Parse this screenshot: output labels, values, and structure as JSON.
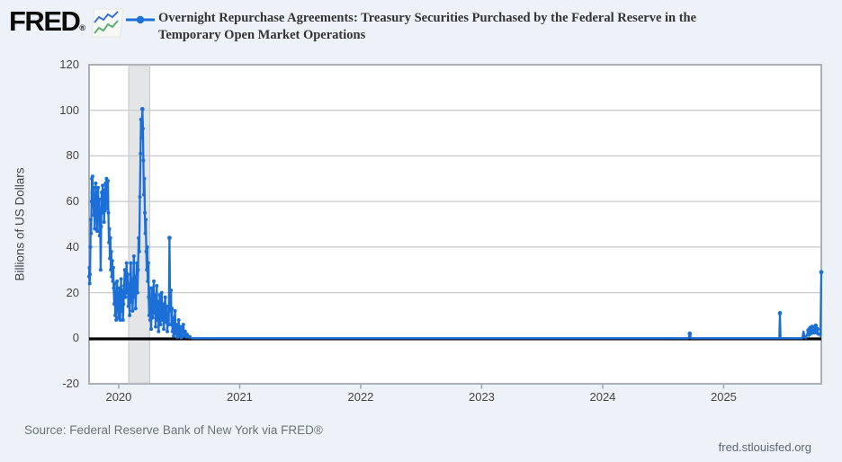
{
  "header": {
    "logo": "FRED",
    "logo_registered": "®",
    "title_line1": "Overnight Repurchase Agreements: Treasury Securities Purchased by the Federal Reserve in the",
    "title_line2": "Temporary Open Market Operations"
  },
  "footer": {
    "source": "Source: Federal Reserve Bank of New York via FRED®",
    "site": "fred.stlouisfed.org"
  },
  "colors": {
    "line": "#1d6fd8",
    "zero_line": "#000000",
    "recession_band": "#e4e5e7",
    "recession_edge": "#c6c7c9",
    "background": "#edf1f8",
    "plot_background": "#ffffff",
    "grid": "#cbcdd0",
    "border": "#aab0b6",
    "tick": "#9aa0a8",
    "axis_text": "#444444",
    "title_text": "#333333",
    "footer_text": "#6a737c"
  },
  "chart_data": {
    "type": "line",
    "title": "Overnight Repurchase Agreements: Treasury Securities Purchased by the Federal Reserve in the Temporary Open Market Operations",
    "xlabel": "",
    "ylabel": "Billions of US Dollars",
    "ylim": [
      -20,
      120
    ],
    "xlim": [
      2019.755,
      2025.807
    ],
    "y_ticks": [
      120,
      100,
      80,
      60,
      40,
      20,
      0,
      -20
    ],
    "x_ticks": [
      2020,
      2021,
      2022,
      2023,
      2024,
      2025
    ],
    "grid": "horizontal",
    "legend_position": "top",
    "zero_line": true,
    "recession_band": {
      "start": 2020.082,
      "end": 2020.256
    },
    "series": [
      {
        "name": "Overnight Repurchase Agreements: Treasury Securities Purchased by the Federal Reserve in the Temporary Open Market Operations",
        "color": "#1d6fd8",
        "units": "Billions of US Dollars",
        "points": [
          [
            2019.755,
            27
          ],
          [
            2019.758,
            31
          ],
          [
            2019.76,
            24
          ],
          [
            2019.763,
            28
          ],
          [
            2019.766,
            40
          ],
          [
            2019.769,
            52
          ],
          [
            2019.772,
            46
          ],
          [
            2019.775,
            60
          ],
          [
            2019.778,
            70
          ],
          [
            2019.781,
            64
          ],
          [
            2019.784,
            71
          ],
          [
            2019.787,
            58
          ],
          [
            2019.79,
            66
          ],
          [
            2019.794,
            54
          ],
          [
            2019.798,
            62
          ],
          [
            2019.802,
            48
          ],
          [
            2019.806,
            58
          ],
          [
            2019.81,
            68
          ],
          [
            2019.814,
            56
          ],
          [
            2019.818,
            64
          ],
          [
            2019.822,
            47
          ],
          [
            2019.826,
            59
          ],
          [
            2019.83,
            66
          ],
          [
            2019.834,
            53
          ],
          [
            2019.838,
            61
          ],
          [
            2019.842,
            45
          ],
          [
            2019.846,
            57
          ],
          [
            2019.851,
            30
          ],
          [
            2019.855,
            49
          ],
          [
            2019.859,
            64
          ],
          [
            2019.863,
            55
          ],
          [
            2019.867,
            67
          ],
          [
            2019.871,
            58
          ],
          [
            2019.875,
            65
          ],
          [
            2019.879,
            51
          ],
          [
            2019.883,
            62
          ],
          [
            2019.887,
            56
          ],
          [
            2019.891,
            68
          ],
          [
            2019.895,
            60
          ],
          [
            2019.899,
            70
          ],
          [
            2019.903,
            63
          ],
          [
            2019.907,
            57
          ],
          [
            2019.911,
            69
          ],
          [
            2019.915,
            55
          ],
          [
            2019.919,
            42
          ],
          [
            2019.923,
            48
          ],
          [
            2019.927,
            35
          ],
          [
            2019.931,
            44
          ],
          [
            2019.935,
            30
          ],
          [
            2019.939,
            38
          ],
          [
            2019.943,
            27
          ],
          [
            2019.947,
            34
          ],
          [
            2019.951,
            25
          ],
          [
            2019.955,
            31
          ],
          [
            2019.959,
            22
          ],
          [
            2019.963,
            15
          ],
          [
            2019.967,
            24
          ],
          [
            2019.971,
            10
          ],
          [
            2019.975,
            19
          ],
          [
            2019.979,
            8
          ],
          [
            2019.983,
            16
          ],
          [
            2019.987,
            25
          ],
          [
            2019.991,
            12
          ],
          [
            2019.995,
            20
          ],
          [
            2020.0,
            9
          ],
          [
            2020.004,
            15
          ],
          [
            2020.008,
            22
          ],
          [
            2020.012,
            8
          ],
          [
            2020.016,
            17
          ],
          [
            2020.02,
            26
          ],
          [
            2020.025,
            12
          ],
          [
            2020.03,
            21
          ],
          [
            2020.035,
            8
          ],
          [
            2020.04,
            15
          ],
          [
            2020.045,
            23
          ],
          [
            2020.05,
            30
          ],
          [
            2020.055,
            18
          ],
          [
            2020.06,
            26
          ],
          [
            2020.065,
            33
          ],
          [
            2020.07,
            20
          ],
          [
            2020.075,
            28
          ],
          [
            2020.08,
            14
          ],
          [
            2020.085,
            24
          ],
          [
            2020.09,
            10
          ],
          [
            2020.095,
            20
          ],
          [
            2020.1,
            33
          ],
          [
            2020.105,
            16
          ],
          [
            2020.11,
            26
          ],
          [
            2020.115,
            12
          ],
          [
            2020.12,
            22
          ],
          [
            2020.125,
            36
          ],
          [
            2020.13,
            18
          ],
          [
            2020.135,
            27
          ],
          [
            2020.14,
            13
          ],
          [
            2020.145,
            24
          ],
          [
            2020.15,
            33
          ],
          [
            2020.155,
            20
          ],
          [
            2020.16,
            30
          ],
          [
            2020.165,
            44
          ],
          [
            2020.17,
            38
          ],
          [
            2020.175,
            62
          ],
          [
            2020.18,
            81
          ],
          [
            2020.184,
            96
          ],
          [
            2020.188,
            88
          ],
          [
            2020.192,
            95
          ],
          [
            2020.196,
            100.5
          ],
          [
            2020.2,
            92
          ],
          [
            2020.204,
            78
          ],
          [
            2020.208,
            63
          ],
          [
            2020.212,
            70
          ],
          [
            2020.216,
            55
          ],
          [
            2020.22,
            46
          ],
          [
            2020.224,
            52
          ],
          [
            2020.228,
            38
          ],
          [
            2020.232,
            30
          ],
          [
            2020.236,
            40
          ],
          [
            2020.24,
            25
          ],
          [
            2020.244,
            33
          ],
          [
            2020.248,
            18
          ],
          [
            2020.252,
            10
          ],
          [
            2020.256,
            22
          ],
          [
            2020.26,
            8
          ],
          [
            2020.264,
            16
          ],
          [
            2020.268,
            4
          ],
          [
            2020.272,
            12
          ],
          [
            2020.276,
            22
          ],
          [
            2020.28,
            9
          ],
          [
            2020.285,
            17
          ],
          [
            2020.29,
            25
          ],
          [
            2020.295,
            11
          ],
          [
            2020.3,
            19
          ],
          [
            2020.305,
            5
          ],
          [
            2020.31,
            14
          ],
          [
            2020.315,
            23
          ],
          [
            2020.32,
            8
          ],
          [
            2020.325,
            16
          ],
          [
            2020.33,
            3
          ],
          [
            2020.335,
            11
          ],
          [
            2020.34,
            19
          ],
          [
            2020.345,
            6
          ],
          [
            2020.35,
            13
          ],
          [
            2020.355,
            20
          ],
          [
            2020.36,
            8
          ],
          [
            2020.366,
            15
          ],
          [
            2020.372,
            4
          ],
          [
            2020.378,
            12
          ],
          [
            2020.384,
            18
          ],
          [
            2020.39,
            7
          ],
          [
            2020.396,
            14
          ],
          [
            2020.402,
            3
          ],
          [
            2020.408,
            10
          ],
          [
            2020.414,
            6
          ],
          [
            2020.42,
            44
          ],
          [
            2020.424,
            20
          ],
          [
            2020.428,
            12
          ],
          [
            2020.432,
            21
          ],
          [
            2020.436,
            6
          ],
          [
            2020.44,
            13
          ],
          [
            2020.444,
            3
          ],
          [
            2020.448,
            9
          ],
          [
            2020.454,
            1
          ],
          [
            2020.46,
            7
          ],
          [
            2020.466,
            12
          ],
          [
            2020.472,
            2
          ],
          [
            2020.478,
            6
          ],
          [
            2020.484,
            0.5
          ],
          [
            2020.49,
            4
          ],
          [
            2020.496,
            8
          ],
          [
            2020.502,
            1
          ],
          [
            2020.51,
            5
          ],
          [
            2020.518,
            0.3
          ],
          [
            2020.526,
            3
          ],
          [
            2020.534,
            6
          ],
          [
            2020.542,
            1
          ],
          [
            2020.55,
            3
          ],
          [
            2020.56,
            0.2
          ],
          [
            2020.57,
            2
          ],
          [
            2020.58,
            0.1
          ],
          [
            2020.59,
            1
          ],
          [
            2020.6,
            0.05
          ],
          [
            2020.617,
            0
          ],
          [
            2020.8,
            0
          ],
          [
            2021.0,
            0
          ],
          [
            2021.25,
            0
          ],
          [
            2021.5,
            0
          ],
          [
            2021.75,
            0
          ],
          [
            2022.0,
            0
          ],
          [
            2022.25,
            0
          ],
          [
            2022.5,
            0
          ],
          [
            2022.75,
            0
          ],
          [
            2023.0,
            0
          ],
          [
            2023.25,
            0
          ],
          [
            2023.5,
            0
          ],
          [
            2023.75,
            0
          ],
          [
            2024.0,
            0
          ],
          [
            2024.25,
            0
          ],
          [
            2024.5,
            0
          ],
          [
            2024.71,
            0
          ],
          [
            2024.72,
            2
          ],
          [
            2024.73,
            0
          ],
          [
            2025.0,
            0
          ],
          [
            2025.2,
            0
          ],
          [
            2025.4,
            0
          ],
          [
            2025.46,
            0
          ],
          [
            2025.465,
            11
          ],
          [
            2025.47,
            0
          ],
          [
            2025.55,
            0
          ],
          [
            2025.65,
            0
          ],
          [
            2025.66,
            3
          ],
          [
            2025.67,
            0.5
          ],
          [
            2025.68,
            0
          ],
          [
            2025.7,
            3.5
          ],
          [
            2025.705,
            1
          ],
          [
            2025.715,
            4.5
          ],
          [
            2025.72,
            1.5
          ],
          [
            2025.73,
            5
          ],
          [
            2025.735,
            2
          ],
          [
            2025.745,
            4.5
          ],
          [
            2025.75,
            2
          ],
          [
            2025.76,
            5.5
          ],
          [
            2025.765,
            2
          ],
          [
            2025.775,
            4
          ],
          [
            2025.78,
            1.5
          ],
          [
            2025.79,
            2
          ],
          [
            2025.8,
            1
          ],
          [
            2025.807,
            29
          ]
        ]
      }
    ],
    "markers": [
      [
        2020.196,
        100.5
      ],
      [
        2020.42,
        44
      ],
      [
        2024.72,
        2
      ],
      [
        2025.465,
        11
      ],
      [
        2025.7,
        3.5
      ],
      [
        2025.715,
        4.5
      ],
      [
        2025.73,
        5
      ],
      [
        2025.76,
        5.5
      ],
      [
        2025.775,
        4
      ],
      [
        2025.807,
        29
      ]
    ]
  }
}
